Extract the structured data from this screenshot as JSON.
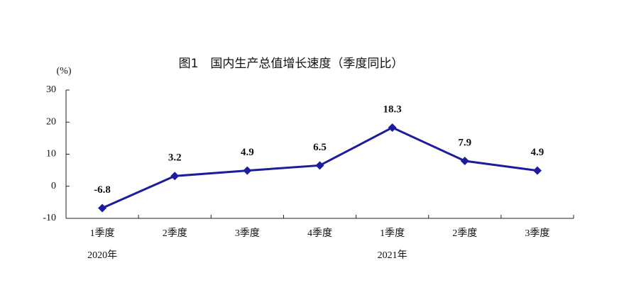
{
  "chart_data": {
    "type": "line",
    "title": "图1　国内生产总值增长速度（季度同比）",
    "y_label": "(%)",
    "category_groups": [
      {
        "label": "2020年",
        "categories": [
          "1季度",
          "2季度",
          "3季度",
          "4季度"
        ]
      },
      {
        "label": "2021年",
        "categories": [
          "1季度",
          "2季度",
          "3季度"
        ]
      }
    ],
    "series": [
      {
        "color": "#1c1c9c",
        "values": [
          -6.8,
          3.2,
          4.9,
          6.5,
          18.3,
          7.9,
          4.9
        ]
      }
    ],
    "ylim": [
      -10,
      30
    ],
    "yticks": [
      -10,
      0,
      10,
      20,
      30
    ],
    "grid": false
  }
}
